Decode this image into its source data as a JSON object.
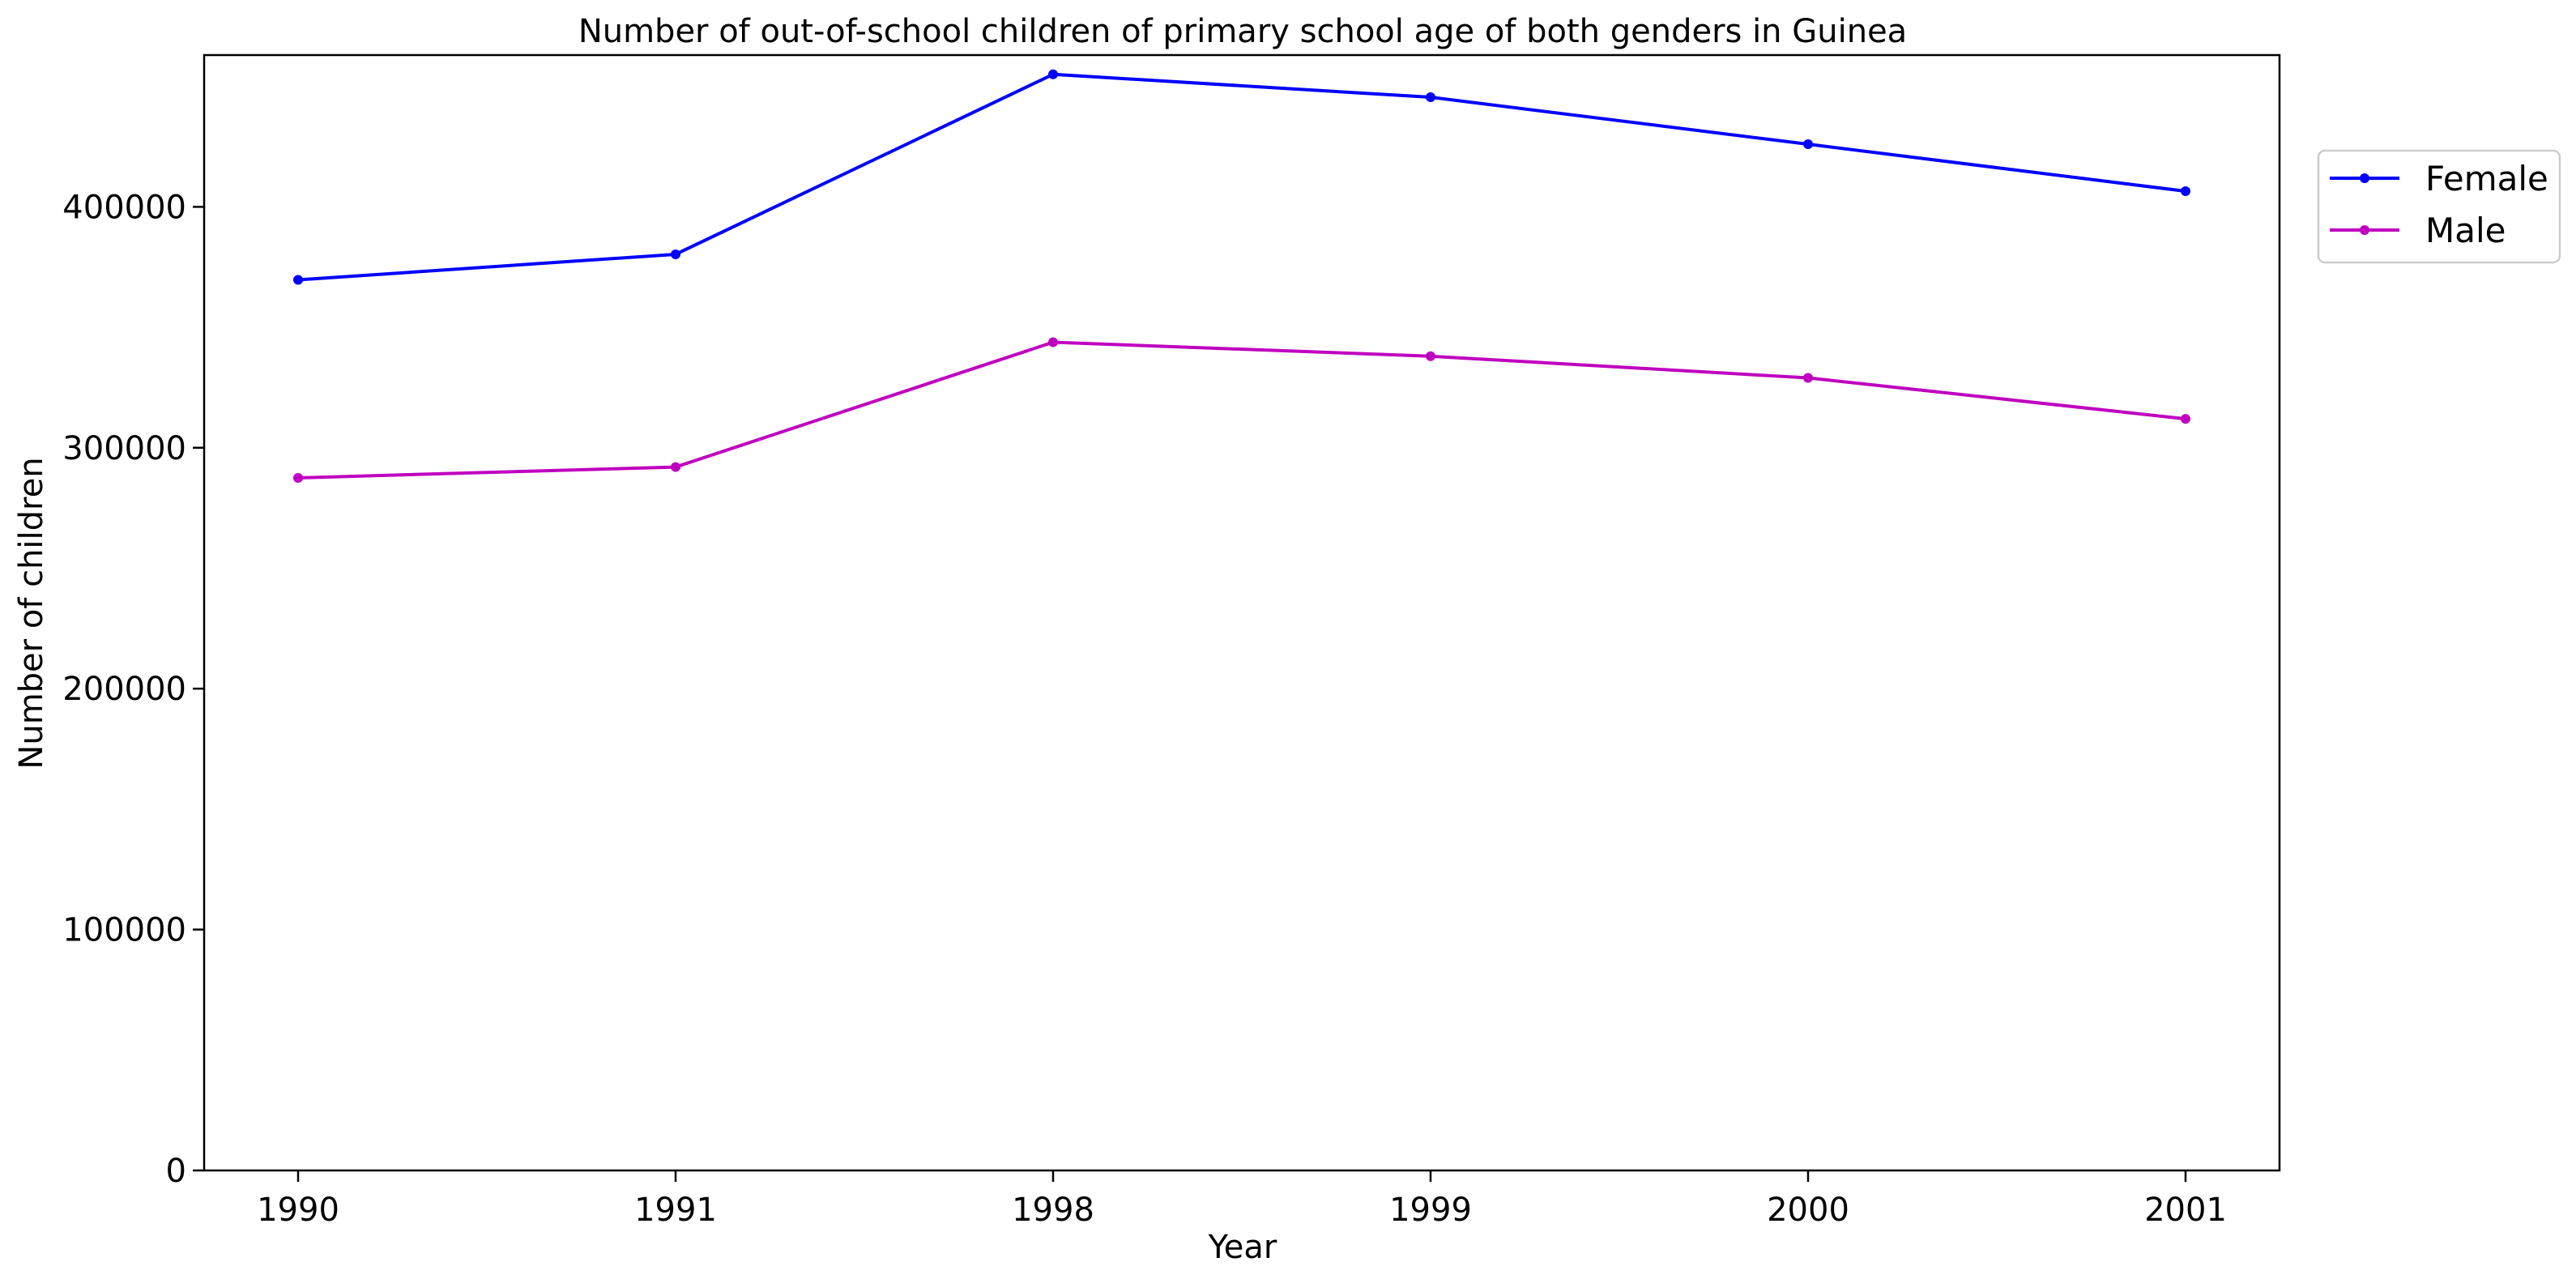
{
  "chart_data": {
    "type": "line",
    "title": "Number of out-of-school children of primary school age of both genders in Guinea",
    "xlabel": "Year",
    "ylabel": "Number of children",
    "categories": [
      "1990",
      "1991",
      "1998",
      "1999",
      "2000",
      "2001"
    ],
    "yticks": [
      "0",
      "100000",
      "200000",
      "300000",
      "400000"
    ],
    "ylim": [
      0,
      463000
    ],
    "grid": false,
    "legend_position": "outside-top-right",
    "series": [
      {
        "name": "Female",
        "color": "#0000ff",
        "values": [
          369700,
          380300,
          455000,
          445500,
          426000,
          406500
        ]
      },
      {
        "name": "Male",
        "color": "#bf00bf",
        "values": [
          287500,
          292000,
          343800,
          338000,
          329000,
          312000
        ]
      }
    ]
  }
}
